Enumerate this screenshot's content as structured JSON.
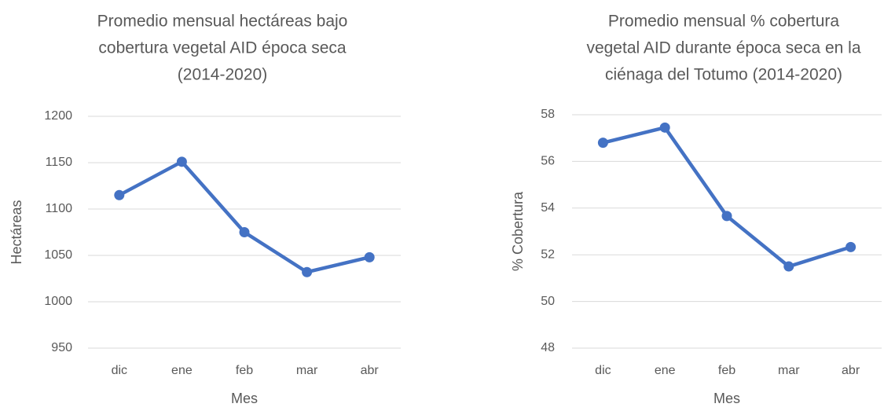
{
  "chart_data": [
    {
      "type": "line",
      "title": [
        "Promedio mensual hectáreas bajo",
        "cobertura vegetal AID época seca",
        "(2014-2020)"
      ],
      "x_label": "Mes",
      "y_label": "Hectáreas",
      "categories": [
        "dic",
        "ene",
        "feb",
        "mar",
        "abr"
      ],
      "values": [
        1115,
        1151,
        1075,
        1032,
        1048
      ],
      "color": "#4472c4",
      "ylim": [
        950,
        1200
      ],
      "yticks": [
        950,
        1000,
        1050,
        1100,
        1150,
        1200
      ],
      "grid": true
    },
    {
      "type": "line",
      "title": [
        "Promedio mensual % cobertura",
        "vegetal AID durante época seca en la",
        "ciénaga del Totumo (2014-2020)"
      ],
      "x_label": "Mes",
      "y_label": "% Cobertura",
      "categories": [
        "dic",
        "ene",
        "feb",
        "mar",
        "abr"
      ],
      "values": [
        56.8,
        57.45,
        53.66,
        51.5,
        52.33
      ],
      "color": "#4472c4",
      "ylim": [
        48,
        58
      ],
      "yticks": [
        48,
        50,
        52,
        54,
        56,
        58
      ],
      "grid": true
    }
  ]
}
